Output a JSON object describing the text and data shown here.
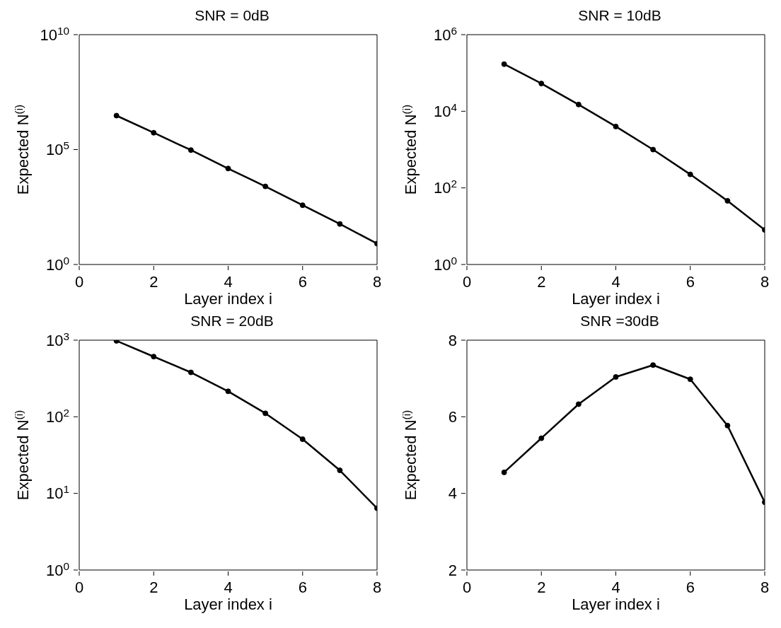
{
  "chart_data": [
    {
      "type": "line",
      "title": "SNR = 0dB",
      "xlabel": "Layer index i",
      "ylabel": "Expected N$^{(i)}$",
      "x": [
        1,
        2,
        3,
        4,
        5,
        6,
        7,
        8
      ],
      "xlim": [
        0,
        8
      ],
      "xticks": [
        0,
        2,
        4,
        6,
        8
      ],
      "log": true,
      "ylim": [
        1,
        10000000000
      ],
      "yticks": [
        {
          "value": 1,
          "label": "10$^{0}$"
        },
        {
          "value": 100000,
          "label": "10$^{5}$"
        },
        {
          "value": 10000000000,
          "label": "10$^{10}$"
        }
      ],
      "marker": "circle",
      "line_style": "solid",
      "series": [
        {
          "color": "#000000",
          "values": [
            3000000,
            540000,
            95000,
            15000,
            2500,
            380,
            58,
            8.1
          ]
        }
      ]
    },
    {
      "type": "line",
      "title": "SNR = 10dB",
      "xlabel": "Layer index i",
      "ylabel": "Expected N$^{(i)}$",
      "x": [
        1,
        2,
        3,
        4,
        5,
        6,
        7,
        8
      ],
      "xlim": [
        0,
        8
      ],
      "xticks": [
        0,
        2,
        4,
        6,
        8
      ],
      "log": true,
      "ylim": [
        1,
        1000000
      ],
      "yticks": [
        {
          "value": 1,
          "label": "10$^{0}$"
        },
        {
          "value": 100,
          "label": "10$^{2}$"
        },
        {
          "value": 10000,
          "label": "10$^{4}$"
        },
        {
          "value": 1000000,
          "label": "10$^{6}$"
        }
      ],
      "marker": "circle",
      "line_style": "solid",
      "series": [
        {
          "color": "#000000",
          "values": [
            170000,
            53000,
            15000,
            4000,
            1000,
            225,
            46,
            8
          ]
        }
      ]
    },
    {
      "type": "line",
      "title": "SNR = 20dB",
      "xlabel": "Layer index i",
      "ylabel": "Expected N$^{(i)}$",
      "x": [
        1,
        2,
        3,
        4,
        5,
        6,
        7,
        8
      ],
      "xlim": [
        0,
        8
      ],
      "xticks": [
        0,
        2,
        4,
        6,
        8
      ],
      "log": true,
      "ylim": [
        1,
        1000
      ],
      "yticks": [
        {
          "value": 1,
          "label": "10$^{0}$"
        },
        {
          "value": 10,
          "label": "10$^{1}$"
        },
        {
          "value": 100,
          "label": "10$^{2}$"
        },
        {
          "value": 1000,
          "label": "10$^{3}$"
        }
      ],
      "marker": "circle",
      "line_style": "solid",
      "series": [
        {
          "color": "#000000",
          "values": [
            980,
            610,
            380,
            215,
            111,
            51,
            20,
            6.4
          ]
        }
      ]
    },
    {
      "type": "line",
      "title": "SNR =30dB",
      "xlabel": "Layer index i",
      "ylabel": "Expected N$^{(i)}$",
      "x": [
        1,
        2,
        3,
        4,
        5,
        6,
        7,
        8
      ],
      "xlim": [
        0,
        8
      ],
      "xticks": [
        0,
        2,
        4,
        6,
        8
      ],
      "ylim": [
        2,
        8
      ],
      "yticks": [
        2,
        4,
        6,
        8
      ],
      "marker": "circle",
      "line_style": "solid",
      "series": [
        {
          "color": "#000000",
          "values": [
            4.55,
            5.44,
            6.33,
            7.04,
            7.35,
            6.98,
            5.77,
            3.77
          ]
        }
      ]
    }
  ]
}
